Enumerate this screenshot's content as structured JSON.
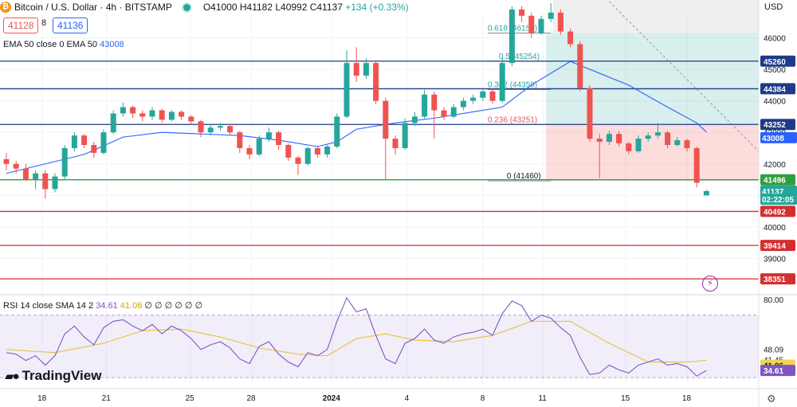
{
  "header": {
    "title": "Bitcoin / U.S. Dollar · 4h · BITSTAMP",
    "ohlc": "O41000 H41182 L40992 C41137",
    "change": "+134 (+0.33%)",
    "sell_price": "41128",
    "spread": "8",
    "buy_price": "41136"
  },
  "ema_label": {
    "name": "EMA 50 close 0 EMA 50",
    "value": "43008"
  },
  "rsi_label": {
    "name": "RSI 14 close SMA 14 2",
    "value": "34.61",
    "sma": "41.06",
    "extra": "∅ ∅ ∅ ∅ ∅ ∅"
  },
  "currency": "USD",
  "logo": "TradingView",
  "colors": {
    "up": "#26a69a",
    "down": "#ef5350",
    "ema": "#2962ff",
    "rsi": "#7e57c2",
    "rsi_sma": "#e8c34a"
  },
  "chart_data": {
    "type": "candlestick",
    "timeframe": "4h",
    "price_axis": {
      "ylim": [
        37900,
        47200
      ],
      "ticks": [
        39000,
        40000,
        41000,
        42000,
        43000,
        44000,
        45000,
        46000
      ]
    },
    "x_ticks": [
      "18",
      "21",
      "25",
      "28",
      "2024",
      "4",
      "8",
      "11",
      "15",
      "18"
    ],
    "horizontal_levels": [
      {
        "price": 45260,
        "label": "45260",
        "color": "#1e3a8a"
      },
      {
        "price": 44384,
        "label": "44384",
        "color": "#1e3a8a"
      },
      {
        "price": 43252,
        "label": "43252",
        "color": "#1e3a8a"
      },
      {
        "price": 41496,
        "label": "41496",
        "color": "#2e9e3f"
      },
      {
        "price": 40492,
        "label": "40492",
        "color": "#d32f2f"
      },
      {
        "price": 39414,
        "label": "39414",
        "color": "#d32f2f"
      },
      {
        "price": 38351,
        "label": "38351",
        "color": "#d32f2f"
      }
    ],
    "fibonacci": [
      {
        "label": "0.618 (46150)",
        "price": 46150
      },
      {
        "label": "0.5 (45254)",
        "price": 45254
      },
      {
        "label": "0.382 (44359)",
        "price": 44359
      },
      {
        "label": "0.236 (43251)",
        "price": 43251
      },
      {
        "label": "0 (41460)",
        "price": 41460
      }
    ],
    "position_zone": {
      "entry": 43252,
      "target_top": 46150,
      "stop": 41460
    },
    "price_labels": [
      {
        "text": "43008",
        "price": 43008,
        "color": "#2962ff"
      },
      {
        "text": "41137",
        "price": 41137,
        "color": "#26a69a"
      },
      {
        "text": "02:22:05",
        "price": 40880,
        "color": "#26a69a"
      }
    ],
    "close_path": [
      [
        0,
        42100
      ],
      [
        1,
        42000
      ],
      [
        2,
        41500
      ],
      [
        3,
        41700
      ],
      [
        4,
        41200
      ],
      [
        5,
        41600
      ],
      [
        6,
        42500
      ],
      [
        7,
        42900
      ],
      [
        8,
        42600
      ],
      [
        9,
        42350
      ],
      [
        10,
        43000
      ],
      [
        11,
        43600
      ],
      [
        12,
        43800
      ],
      [
        13,
        43600
      ],
      [
        14,
        43500
      ],
      [
        15,
        43700
      ],
      [
        16,
        43400
      ],
      [
        17,
        43650
      ],
      [
        18,
        43500
      ],
      [
        19,
        43350
      ],
      [
        20,
        43000
      ],
      [
        21,
        43150
      ],
      [
        22,
        43200
      ],
      [
        23,
        43000
      ],
      [
        24,
        42500
      ],
      [
        25,
        42300
      ],
      [
        26,
        42800
      ],
      [
        27,
        43000
      ],
      [
        28,
        42600
      ],
      [
        29,
        42200
      ],
      [
        30,
        42000
      ],
      [
        31,
        42500
      ],
      [
        32,
        42300
      ],
      [
        33,
        42550
      ],
      [
        34,
        43500
      ],
      [
        35,
        45200
      ],
      [
        36,
        44800
      ],
      [
        37,
        45200
      ],
      [
        38,
        44000
      ],
      [
        39,
        42800
      ],
      [
        40,
        42500
      ],
      [
        41,
        43300
      ],
      [
        42,
        43500
      ],
      [
        43,
        44200
      ],
      [
        44,
        43700
      ],
      [
        45,
        43500
      ],
      [
        46,
        43800
      ],
      [
        47,
        44000
      ],
      [
        48,
        44100
      ],
      [
        49,
        44300
      ],
      [
        50,
        44000
      ],
      [
        51,
        45200
      ],
      [
        52,
        46900
      ],
      [
        53,
        46700
      ],
      [
        54,
        46150
      ],
      [
        55,
        46600
      ],
      [
        56,
        46800
      ],
      [
        57,
        46200
      ],
      [
        58,
        45800
      ],
      [
        59,
        44400
      ],
      [
        60,
        42800
      ],
      [
        61,
        42700
      ],
      [
        62,
        42950
      ],
      [
        63,
        42650
      ],
      [
        64,
        42400
      ],
      [
        65,
        42800
      ],
      [
        66,
        42900
      ],
      [
        67,
        43000
      ],
      [
        68,
        42600
      ],
      [
        69,
        42750
      ],
      [
        70,
        42500
      ],
      [
        71,
        41400
      ],
      [
        72,
        41137
      ]
    ],
    "ema_50_path": [
      [
        0,
        41700
      ],
      [
        8,
        42300
      ],
      [
        12,
        42850
      ],
      [
        16,
        43000
      ],
      [
        20,
        42950
      ],
      [
        24,
        42900
      ],
      [
        28,
        42750
      ],
      [
        32,
        42550
      ],
      [
        34,
        42700
      ],
      [
        36,
        43100
      ],
      [
        40,
        43300
      ],
      [
        44,
        43450
      ],
      [
        48,
        43650
      ],
      [
        51,
        43800
      ],
      [
        54,
        44500
      ],
      [
        58,
        45250
      ],
      [
        60,
        45000
      ],
      [
        64,
        44500
      ],
      [
        68,
        43800
      ],
      [
        71,
        43300
      ],
      [
        72,
        43008
      ]
    ],
    "candles": [
      [
        42150,
        42350,
        41800,
        42000
      ],
      [
        42000,
        42100,
        41700,
        41850
      ],
      [
        41850,
        42000,
        41450,
        41500
      ],
      [
        41500,
        41800,
        41200,
        41700
      ],
      [
        41700,
        41800,
        40900,
        41200
      ],
      [
        41200,
        41700,
        41100,
        41600
      ],
      [
        41600,
        42600,
        41500,
        42500
      ],
      [
        42500,
        43000,
        42400,
        42900
      ],
      [
        42900,
        42950,
        42500,
        42600
      ],
      [
        42600,
        42700,
        42200,
        42350
      ],
      [
        42350,
        43100,
        42300,
        43000
      ],
      [
        43000,
        43700,
        42950,
        43600
      ],
      [
        43600,
        43950,
        43500,
        43800
      ],
      [
        43800,
        43850,
        43450,
        43600
      ],
      [
        43600,
        43700,
        43350,
        43500
      ],
      [
        43500,
        43800,
        43400,
        43700
      ],
      [
        43700,
        43750,
        43300,
        43400
      ],
      [
        43400,
        43700,
        43350,
        43650
      ],
      [
        43650,
        43700,
        43400,
        43500
      ],
      [
        43500,
        43550,
        43250,
        43350
      ],
      [
        43350,
        43400,
        42850,
        43000
      ],
      [
        43000,
        43250,
        42900,
        43150
      ],
      [
        43150,
        43300,
        43050,
        43200
      ],
      [
        43200,
        43250,
        42900,
        43000
      ],
      [
        43000,
        43050,
        42350,
        42500
      ],
      [
        42500,
        42600,
        42150,
        42300
      ],
      [
        42300,
        42900,
        42250,
        42800
      ],
      [
        42800,
        43150,
        42700,
        43000
      ],
      [
        43000,
        43050,
        42450,
        42600
      ],
      [
        42600,
        42650,
        42100,
        42200
      ],
      [
        42200,
        42250,
        41650,
        42000
      ],
      [
        42000,
        42550,
        41950,
        42500
      ],
      [
        42500,
        42550,
        42200,
        42300
      ],
      [
        42300,
        42600,
        42200,
        42550
      ],
      [
        42550,
        43600,
        42500,
        43500
      ],
      [
        43500,
        45600,
        43450,
        45200
      ],
      [
        45200,
        45700,
        44600,
        44800
      ],
      [
        44800,
        45350,
        44700,
        45200
      ],
      [
        45200,
        45250,
        43900,
        44000
      ],
      [
        44000,
        44100,
        41500,
        42800
      ],
      [
        42800,
        42900,
        42300,
        42500
      ],
      [
        42500,
        43450,
        42450,
        43300
      ],
      [
        43300,
        43650,
        43200,
        43500
      ],
      [
        43500,
        44350,
        43400,
        44200
      ],
      [
        44200,
        44300,
        42800,
        43700
      ],
      [
        43700,
        43800,
        43400,
        43500
      ],
      [
        43500,
        43900,
        43450,
        43800
      ],
      [
        43800,
        44100,
        43700,
        44000
      ],
      [
        44000,
        44200,
        43900,
        44100
      ],
      [
        44100,
        44350,
        44000,
        44300
      ],
      [
        44300,
        44400,
        43900,
        44000
      ],
      [
        44000,
        45400,
        43950,
        45200
      ],
      [
        45200,
        47000,
        45100,
        46900
      ],
      [
        46900,
        47000,
        46500,
        46700
      ],
      [
        46700,
        46800,
        46000,
        46150
      ],
      [
        46150,
        46700,
        46100,
        46600
      ],
      [
        46600,
        47100,
        46500,
        46800
      ],
      [
        46800,
        46900,
        46100,
        46200
      ],
      [
        46200,
        46300,
        45700,
        45800
      ],
      [
        45800,
        45900,
        44300,
        44400
      ],
      [
        44400,
        44500,
        42700,
        42800
      ],
      [
        42800,
        42950,
        41550,
        42700
      ],
      [
        42700,
        43050,
        42600,
        42950
      ],
      [
        42950,
        43050,
        42550,
        42650
      ],
      [
        42650,
        42700,
        42300,
        42400
      ],
      [
        42400,
        42900,
        42350,
        42800
      ],
      [
        42800,
        43000,
        42700,
        42900
      ],
      [
        42900,
        43300,
        42800,
        43000
      ],
      [
        43000,
        43050,
        42500,
        42600
      ],
      [
        42600,
        42850,
        42550,
        42750
      ],
      [
        42750,
        42800,
        42400,
        42500
      ],
      [
        42500,
        42550,
        41250,
        41400
      ],
      [
        41000,
        41182,
        40992,
        41137
      ]
    ],
    "rsi": {
      "axis_ticks": [
        "80.00",
        "48.09",
        "41.45"
      ],
      "labels": [
        {
          "text": "41.06",
          "kind": "sma"
        },
        {
          "text": "34.61",
          "kind": "rsi"
        }
      ],
      "band_upper": 70,
      "band_lower": 30,
      "ylim": [
        25,
        82
      ],
      "rsi_path": [
        [
          0,
          46
        ],
        [
          1,
          45
        ],
        [
          2,
          41
        ],
        [
          3,
          44
        ],
        [
          4,
          38
        ],
        [
          5,
          44
        ],
        [
          6,
          58
        ],
        [
          7,
          63
        ],
        [
          8,
          56
        ],
        [
          9,
          51
        ],
        [
          10,
          62
        ],
        [
          11,
          66
        ],
        [
          12,
          67
        ],
        [
          13,
          63
        ],
        [
          14,
          60
        ],
        [
          15,
          64
        ],
        [
          16,
          58
        ],
        [
          17,
          63
        ],
        [
          18,
          60
        ],
        [
          19,
          55
        ],
        [
          20,
          48
        ],
        [
          21,
          51
        ],
        [
          22,
          53
        ],
        [
          23,
          49
        ],
        [
          24,
          42
        ],
        [
          25,
          39
        ],
        [
          26,
          50
        ],
        [
          27,
          53
        ],
        [
          28,
          45
        ],
        [
          29,
          40
        ],
        [
          30,
          37
        ],
        [
          31,
          46
        ],
        [
          32,
          44
        ],
        [
          33,
          48
        ],
        [
          34,
          66
        ],
        [
          35,
          81
        ],
        [
          36,
          72
        ],
        [
          37,
          74
        ],
        [
          38,
          57
        ],
        [
          39,
          42
        ],
        [
          40,
          39
        ],
        [
          41,
          52
        ],
        [
          42,
          55
        ],
        [
          43,
          61
        ],
        [
          44,
          54
        ],
        [
          45,
          52
        ],
        [
          46,
          56
        ],
        [
          47,
          58
        ],
        [
          48,
          59
        ],
        [
          49,
          61
        ],
        [
          50,
          57
        ],
        [
          51,
          71
        ],
        [
          52,
          79
        ],
        [
          53,
          76
        ],
        [
          54,
          66
        ],
        [
          55,
          70
        ],
        [
          56,
          68
        ],
        [
          57,
          62
        ],
        [
          58,
          57
        ],
        [
          59,
          43
        ],
        [
          60,
          32
        ],
        [
          61,
          33
        ],
        [
          62,
          38
        ],
        [
          63,
          35
        ],
        [
          64,
          33
        ],
        [
          65,
          38
        ],
        [
          66,
          40
        ],
        [
          67,
          42
        ],
        [
          68,
          38
        ],
        [
          69,
          39
        ],
        [
          70,
          37
        ],
        [
          71,
          31
        ],
        [
          72,
          34.61
        ]
      ],
      "sma_path": [
        [
          0,
          48
        ],
        [
          5,
          46
        ],
        [
          10,
          52
        ],
        [
          14,
          60
        ],
        [
          18,
          61
        ],
        [
          22,
          56
        ],
        [
          26,
          49
        ],
        [
          30,
          45
        ],
        [
          33,
          44
        ],
        [
          36,
          55
        ],
        [
          39,
          58
        ],
        [
          42,
          54
        ],
        [
          46,
          53
        ],
        [
          50,
          57
        ],
        [
          54,
          66
        ],
        [
          58,
          66
        ],
        [
          62,
          52
        ],
        [
          66,
          40
        ],
        [
          70,
          40
        ],
        [
          72,
          41.06
        ]
      ]
    }
  }
}
